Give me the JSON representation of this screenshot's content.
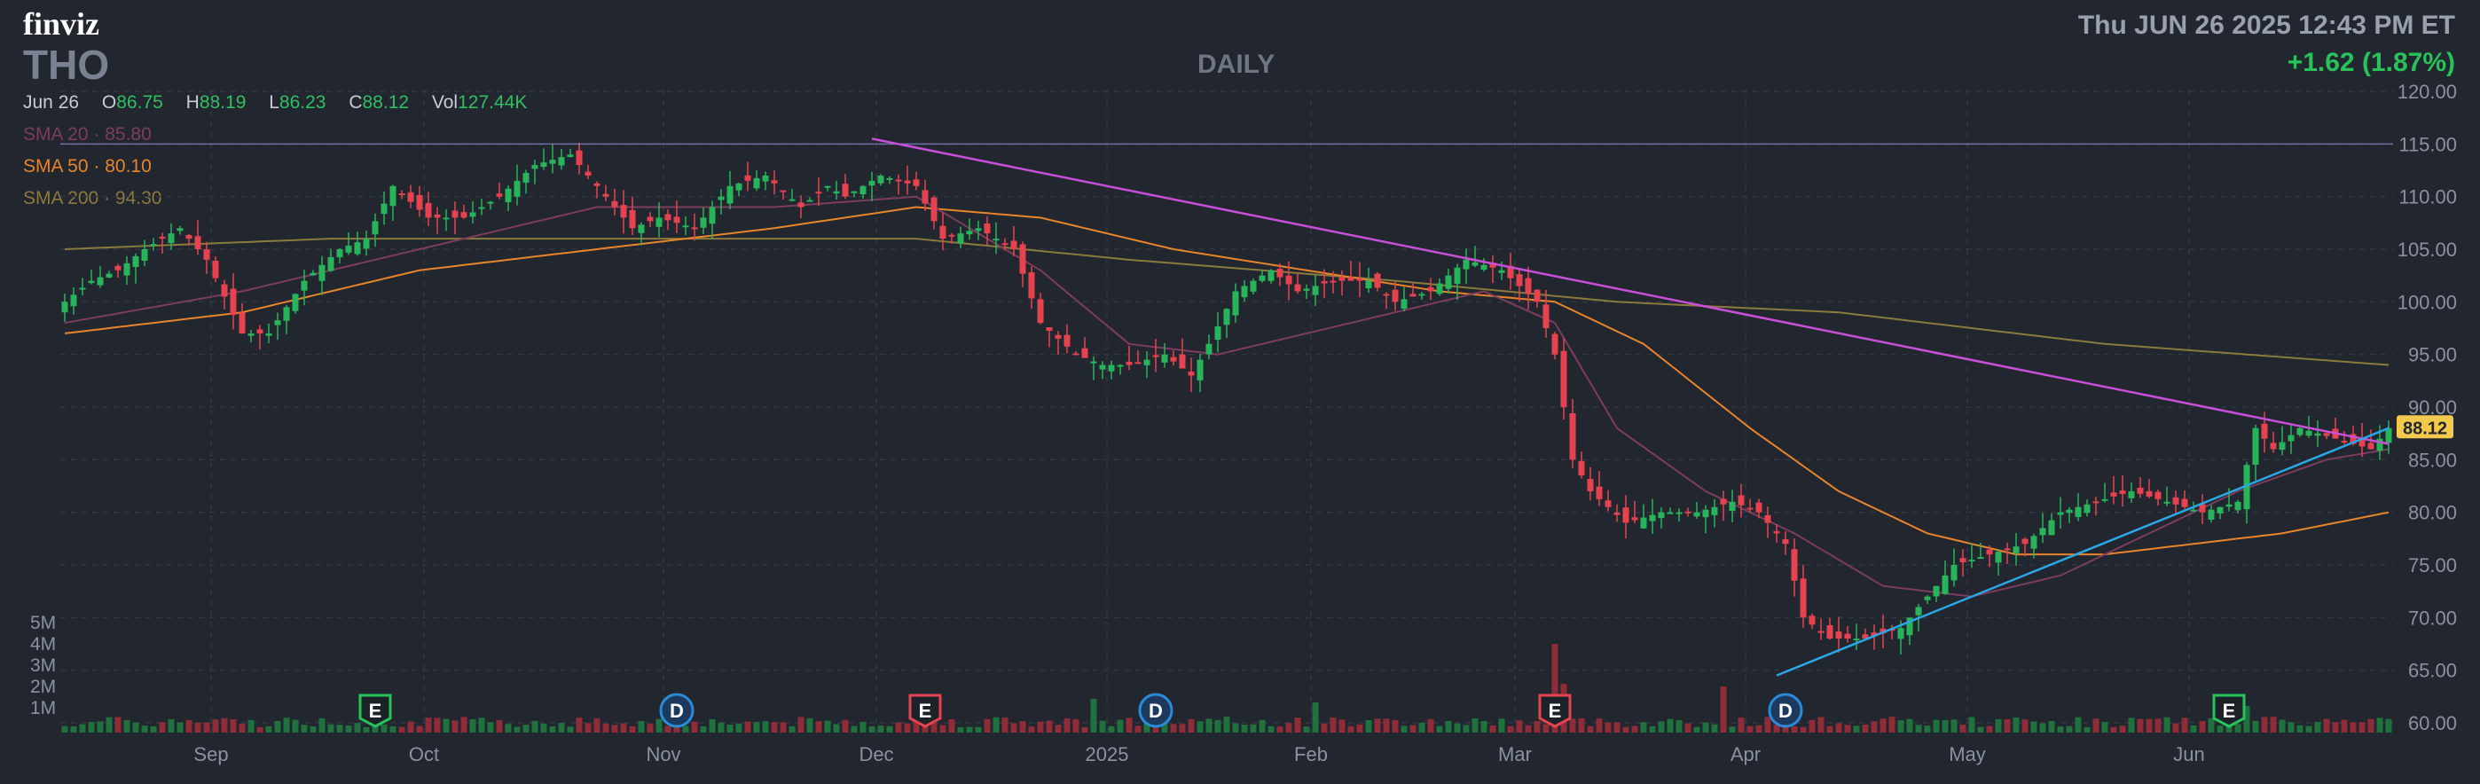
{
  "header": {
    "logo": "finviz",
    "ticker": "THO",
    "timeframe": "DAILY",
    "datetime": "Thu JUN 26 2025 12:43 PM ET",
    "change": "+1.62 (1.87%)"
  },
  "ohlc": {
    "date": "Jun 26",
    "open_label": "O",
    "open": "86.75",
    "high_label": "H",
    "high": "88.19",
    "low_label": "L",
    "low": "86.23",
    "close_label": "C",
    "close": "88.12",
    "vol_label": "Vol",
    "vol": "127.44K"
  },
  "sma": [
    {
      "label": "SMA 20",
      "value": "85.80",
      "color": "#7d3c5e"
    },
    {
      "label": "SMA 50",
      "value": "80.10",
      "color": "#e8842a"
    },
    {
      "label": "SMA 200",
      "value": "94.30",
      "color": "#8a7a3c"
    }
  ],
  "colors": {
    "up": "#28b45a",
    "down": "#e6424f",
    "background": "#22262f",
    "grid": "#313643",
    "resistance": "#a9a9ff",
    "trendline": "#c84fd8",
    "supportline": "#2aa7e6",
    "price_tag": "#f2c94c"
  },
  "chart_data": {
    "type": "candlestick",
    "ylim": [
      60,
      120
    ],
    "y_ticks": [
      "120.00",
      "115.00",
      "110.00",
      "105.00",
      "100.00",
      "95.00",
      "90.00",
      "85.00",
      "80.00",
      "75.00",
      "70.00",
      "65.00",
      "60.00"
    ],
    "x_labels": [
      "Sep",
      "Oct",
      "Nov",
      "Dec",
      "2025",
      "Feb",
      "Mar",
      "Apr",
      "May",
      "Jun"
    ],
    "volume_ticks": [
      "5M",
      "4M",
      "3M",
      "2M",
      "1M"
    ],
    "last_price": "88.12",
    "resistance_level": 115.0,
    "events": [
      {
        "letter": "E",
        "type": "earnings",
        "color": "#27c35a"
      },
      {
        "letter": "D",
        "type": "dividend",
        "color": "#2a8bd8"
      },
      {
        "letter": "E",
        "type": "earnings",
        "color": "#e6424f"
      },
      {
        "letter": "D",
        "type": "dividend",
        "color": "#2a8bd8"
      },
      {
        "letter": "E",
        "type": "earnings",
        "color": "#e6424f"
      },
      {
        "letter": "D",
        "type": "dividend",
        "color": "#2a8bd8"
      },
      {
        "letter": "E",
        "type": "earnings",
        "color": "#27c35a"
      }
    ],
    "close_path": [
      [
        0,
        100
      ],
      [
        3,
        102
      ],
      [
        6,
        103
      ],
      [
        9,
        105
      ],
      [
        13,
        107
      ],
      [
        16,
        104
      ],
      [
        20,
        97
      ],
      [
        23,
        97
      ],
      [
        27,
        102
      ],
      [
        31,
        105
      ],
      [
        34,
        106
      ],
      [
        37,
        111
      ],
      [
        41,
        108
      ],
      [
        45,
        108
      ],
      [
        49,
        110
      ],
      [
        53,
        113
      ],
      [
        57,
        114
      ],
      [
        61,
        110
      ],
      [
        64,
        107
      ],
      [
        67,
        108
      ],
      [
        71,
        107
      ],
      [
        75,
        111
      ],
      [
        79,
        112
      ],
      [
        83,
        109
      ],
      [
        86,
        111
      ],
      [
        88,
        110
      ],
      [
        92,
        112
      ],
      [
        96,
        111
      ],
      [
        99,
        106
      ],
      [
        103,
        107
      ],
      [
        107,
        105
      ],
      [
        110,
        98
      ],
      [
        114,
        95
      ],
      [
        117,
        94
      ],
      [
        120,
        94
      ],
      [
        124,
        95
      ],
      [
        127,
        93
      ],
      [
        129,
        96
      ],
      [
        132,
        101
      ],
      [
        136,
        103
      ],
      [
        139,
        101
      ],
      [
        143,
        102
      ],
      [
        147,
        102
      ],
      [
        150,
        100
      ],
      [
        154,
        101
      ],
      [
        158,
        104
      ],
      [
        162,
        103
      ],
      [
        166,
        100
      ],
      [
        168,
        95
      ],
      [
        170,
        85
      ],
      [
        172,
        82
      ],
      [
        176,
        79
      ],
      [
        180,
        80
      ],
      [
        184,
        80
      ],
      [
        188,
        81
      ],
      [
        191,
        80
      ],
      [
        194,
        77
      ],
      [
        196,
        70
      ],
      [
        199,
        68
      ],
      [
        203,
        68
      ],
      [
        207,
        69
      ],
      [
        210,
        72
      ],
      [
        213,
        75
      ],
      [
        217,
        76
      ],
      [
        221,
        77
      ],
      [
        225,
        80
      ],
      [
        229,
        81
      ],
      [
        233,
        82
      ],
      [
        237,
        81
      ],
      [
        241,
        80
      ],
      [
        245,
        81
      ],
      [
        247,
        88
      ],
      [
        249,
        86
      ],
      [
        252,
        88
      ],
      [
        256,
        87
      ],
      [
        260,
        86
      ],
      [
        262,
        88
      ]
    ],
    "sma20_path": [
      [
        0,
        98
      ],
      [
        20,
        101
      ],
      [
        40,
        105
      ],
      [
        60,
        109
      ],
      [
        80,
        109
      ],
      [
        96,
        110
      ],
      [
        110,
        103
      ],
      [
        120,
        96
      ],
      [
        130,
        95
      ],
      [
        140,
        97
      ],
      [
        150,
        99
      ],
      [
        160,
        101
      ],
      [
        168,
        98
      ],
      [
        175,
        88
      ],
      [
        185,
        82
      ],
      [
        195,
        78
      ],
      [
        205,
        73
      ],
      [
        215,
        72
      ],
      [
        225,
        74
      ],
      [
        235,
        78
      ],
      [
        245,
        82
      ],
      [
        255,
        85
      ],
      [
        262,
        86
      ]
    ],
    "sma50_path": [
      [
        0,
        97
      ],
      [
        20,
        99
      ],
      [
        40,
        103
      ],
      [
        60,
        105
      ],
      [
        80,
        107
      ],
      [
        96,
        109
      ],
      [
        110,
        108
      ],
      [
        125,
        105
      ],
      [
        140,
        103
      ],
      [
        155,
        101
      ],
      [
        168,
        100
      ],
      [
        178,
        96
      ],
      [
        190,
        88
      ],
      [
        200,
        82
      ],
      [
        210,
        78
      ],
      [
        220,
        76
      ],
      [
        230,
        76
      ],
      [
        240,
        77
      ],
      [
        250,
        78
      ],
      [
        262,
        80
      ]
    ],
    "sma200_path": [
      [
        0,
        105
      ],
      [
        30,
        106
      ],
      [
        60,
        106
      ],
      [
        96,
        106
      ],
      [
        120,
        104
      ],
      [
        150,
        102
      ],
      [
        175,
        100
      ],
      [
        200,
        99
      ],
      [
        230,
        96
      ],
      [
        262,
        94
      ]
    ],
    "trendline": {
      "from": [
        91,
        115.5
      ],
      "to": [
        262,
        86.5
      ]
    },
    "supportline": {
      "from": [
        193,
        64.5
      ],
      "to": [
        262,
        88
      ]
    }
  }
}
